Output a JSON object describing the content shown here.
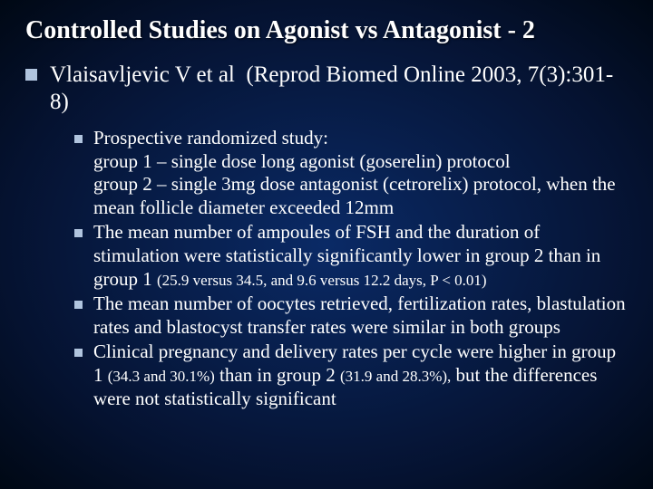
{
  "background": {
    "gradient_inner": "#0a2a66",
    "gradient_mid": "#051230",
    "gradient_outer": "#000814"
  },
  "bullet_color": "#b0c4de",
  "text_color": "#ffffff",
  "title": "Controlled Studies on Agonist vs Antagonist - 2",
  "title_fontsize": 28,
  "level1_fontsize": 25,
  "level2_fontsize": 21,
  "small_fontsize": 17,
  "font_family": "Times New Roman",
  "ref": {
    "authors": "Vlaisavljevic V et al",
    "journal": "(Reprod Biomed Online 2003, 7(3):301-8)"
  },
  "points": [
    {
      "lines": [
        "Prospective randomized study:",
        "group 1 – single dose long agonist (goserelin) protocol",
        "group 2 – single 3mg dose antagonist (cetrorelix) protocol, when the mean follicle diameter exceeded 12mm"
      ]
    },
    {
      "main": "The mean number of ampoules of FSH and the duration of stimulation were statistically significantly lower in group 2 than in group 1 ",
      "stat": "(25.9 versus 34.5, and 9.6 versus 12.2 days, P < 0.01)"
    },
    {
      "main": "The mean number of oocytes retrieved, fertilization rates, blastulation rates and blastocyst transfer rates were similar in both groups"
    },
    {
      "pre": "Clinical pregnancy and delivery rates per cycle were higher in group 1 ",
      "stat1": "(34.3 and 30.1%)",
      "mid": " than in group 2 ",
      "stat2": "(31.9 and 28.3%),",
      "post": " but the differences were not statistically significant"
    }
  ]
}
